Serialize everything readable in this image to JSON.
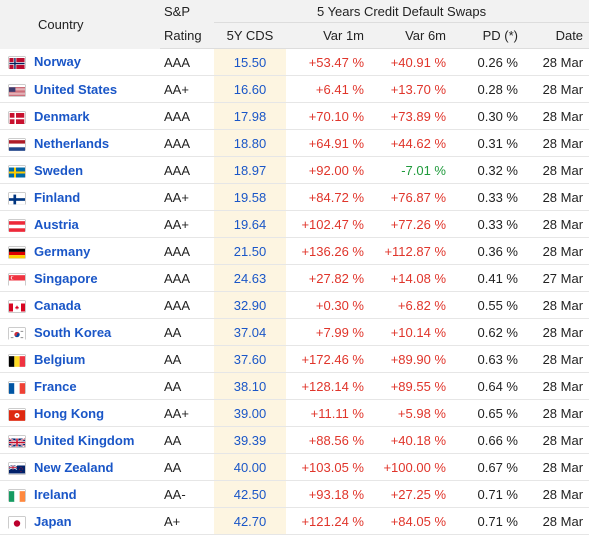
{
  "header": {
    "country": "Country",
    "rating_top": "S&P",
    "rating_bottom": "Rating",
    "group": "5 Years Credit Default Swaps",
    "cds": "5Y CDS",
    "var1m": "Var 1m",
    "var6m": "Var 6m",
    "pd": "PD (*)",
    "date": "Date"
  },
  "colors": {
    "link": "#1a56c7",
    "positive": "#e0352b",
    "negative": "#1f9a3c",
    "cds_bg": "#fdf5e1"
  },
  "rows": [
    {
      "flag": "norway-flag-icon",
      "country": "Norway",
      "rating": "AAA",
      "cds": "15.50",
      "var1m": "+53.47 %",
      "var6m": "+40.91 %",
      "var6m_neg": false,
      "pd": "0.26 %",
      "date": "28 Mar"
    },
    {
      "flag": "united-states-flag-icon",
      "country": "United States",
      "rating": "AA+",
      "cds": "16.60",
      "var1m": "+6.41 %",
      "var6m": "+13.70 %",
      "var6m_neg": false,
      "pd": "0.28 %",
      "date": "28 Mar"
    },
    {
      "flag": "denmark-flag-icon",
      "country": "Denmark",
      "rating": "AAA",
      "cds": "17.98",
      "var1m": "+70.10 %",
      "var6m": "+73.89 %",
      "var6m_neg": false,
      "pd": "0.30 %",
      "date": "28 Mar"
    },
    {
      "flag": "netherlands-flag-icon",
      "country": "Netherlands",
      "rating": "AAA",
      "cds": "18.80",
      "var1m": "+64.91 %",
      "var6m": "+44.62 %",
      "var6m_neg": false,
      "pd": "0.31 %",
      "date": "28 Mar"
    },
    {
      "flag": "sweden-flag-icon",
      "country": "Sweden",
      "rating": "AAA",
      "cds": "18.97",
      "var1m": "+92.00 %",
      "var6m": "-7.01 %",
      "var6m_neg": true,
      "pd": "0.32 %",
      "date": "28 Mar"
    },
    {
      "flag": "finland-flag-icon",
      "country": "Finland",
      "rating": "AA+",
      "cds": "19.58",
      "var1m": "+84.72 %",
      "var6m": "+76.87 %",
      "var6m_neg": false,
      "pd": "0.33 %",
      "date": "28 Mar"
    },
    {
      "flag": "austria-flag-icon",
      "country": "Austria",
      "rating": "AA+",
      "cds": "19.64",
      "var1m": "+102.47 %",
      "var6m": "+77.26 %",
      "var6m_neg": false,
      "pd": "0.33 %",
      "date": "28 Mar"
    },
    {
      "flag": "germany-flag-icon",
      "country": "Germany",
      "rating": "AAA",
      "cds": "21.50",
      "var1m": "+136.26 %",
      "var6m": "+112.87 %",
      "var6m_neg": false,
      "pd": "0.36 %",
      "date": "28 Mar"
    },
    {
      "flag": "singapore-flag-icon",
      "country": "Singapore",
      "rating": "AAA",
      "cds": "24.63",
      "var1m": "+27.82 %",
      "var6m": "+14.08 %",
      "var6m_neg": false,
      "pd": "0.41 %",
      "date": "27 Mar"
    },
    {
      "flag": "canada-flag-icon",
      "country": "Canada",
      "rating": "AAA",
      "cds": "32.90",
      "var1m": "+0.30 %",
      "var6m": "+6.82 %",
      "var6m_neg": false,
      "pd": "0.55 %",
      "date": "28 Mar"
    },
    {
      "flag": "south-korea-flag-icon",
      "country": "South Korea",
      "rating": "AA",
      "cds": "37.04",
      "var1m": "+7.99 %",
      "var6m": "+10.14 %",
      "var6m_neg": false,
      "pd": "0.62 %",
      "date": "28 Mar"
    },
    {
      "flag": "belgium-flag-icon",
      "country": "Belgium",
      "rating": "AA",
      "cds": "37.60",
      "var1m": "+172.46 %",
      "var6m": "+89.90 %",
      "var6m_neg": false,
      "pd": "0.63 %",
      "date": "28 Mar"
    },
    {
      "flag": "france-flag-icon",
      "country": "France",
      "rating": "AA",
      "cds": "38.10",
      "var1m": "+128.14 %",
      "var6m": "+89.55 %",
      "var6m_neg": false,
      "pd": "0.64 %",
      "date": "28 Mar"
    },
    {
      "flag": "hong-kong-flag-icon",
      "country": "Hong Kong",
      "rating": "AA+",
      "cds": "39.00",
      "var1m": "+11.11 %",
      "var6m": "+5.98 %",
      "var6m_neg": false,
      "pd": "0.65 %",
      "date": "28 Mar"
    },
    {
      "flag": "united-kingdom-flag-icon",
      "country": "United Kingdom",
      "rating": "AA",
      "cds": "39.39",
      "var1m": "+88.56 %",
      "var6m": "+40.18 %",
      "var6m_neg": false,
      "pd": "0.66 %",
      "date": "28 Mar"
    },
    {
      "flag": "new-zealand-flag-icon",
      "country": "New Zealand",
      "rating": "AA",
      "cds": "40.00",
      "var1m": "+103.05 %",
      "var6m": "+100.00 %",
      "var6m_neg": false,
      "pd": "0.67 %",
      "date": "28 Mar"
    },
    {
      "flag": "ireland-flag-icon",
      "country": "Ireland",
      "rating": "AA-",
      "cds": "42.50",
      "var1m": "+93.18 %",
      "var6m": "+27.25 %",
      "var6m_neg": false,
      "pd": "0.71 %",
      "date": "28 Mar"
    },
    {
      "flag": "japan-flag-icon",
      "country": "Japan",
      "rating": "A+",
      "cds": "42.70",
      "var1m": "+121.24 %",
      "var6m": "+84.05 %",
      "var6m_neg": false,
      "pd": "0.71 %",
      "date": "28 Mar"
    }
  ]
}
